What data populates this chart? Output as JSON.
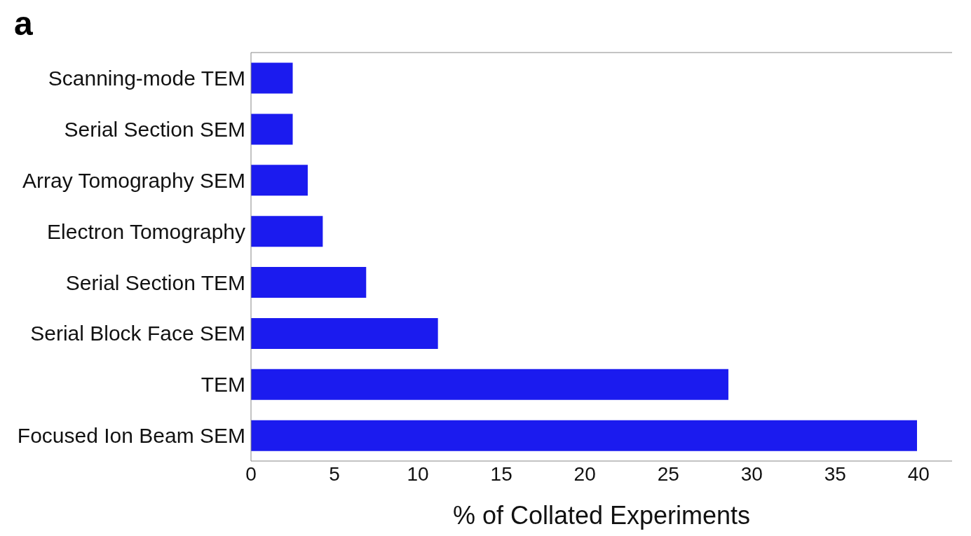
{
  "chart_data": {
    "type": "bar",
    "orientation": "horizontal",
    "title": "a",
    "xlabel": "% of Collated Experiments",
    "categories": [
      "Scanning-mode TEM",
      "Serial Section SEM",
      "Array Tomography SEM",
      "Electron Tomography",
      "Serial Section TEM",
      "Serial Block Face SEM",
      "TEM",
      "Focused Ion Beam SEM"
    ],
    "values": [
      2.5,
      2.5,
      3.4,
      4.3,
      6.9,
      11.2,
      28.6,
      39.9
    ],
    "color": "#1b1bef",
    "xlim": [
      0,
      42
    ],
    "xticks": [
      0,
      5,
      10,
      15,
      20,
      25,
      30,
      35,
      40
    ],
    "grid": false,
    "legend": false
  }
}
